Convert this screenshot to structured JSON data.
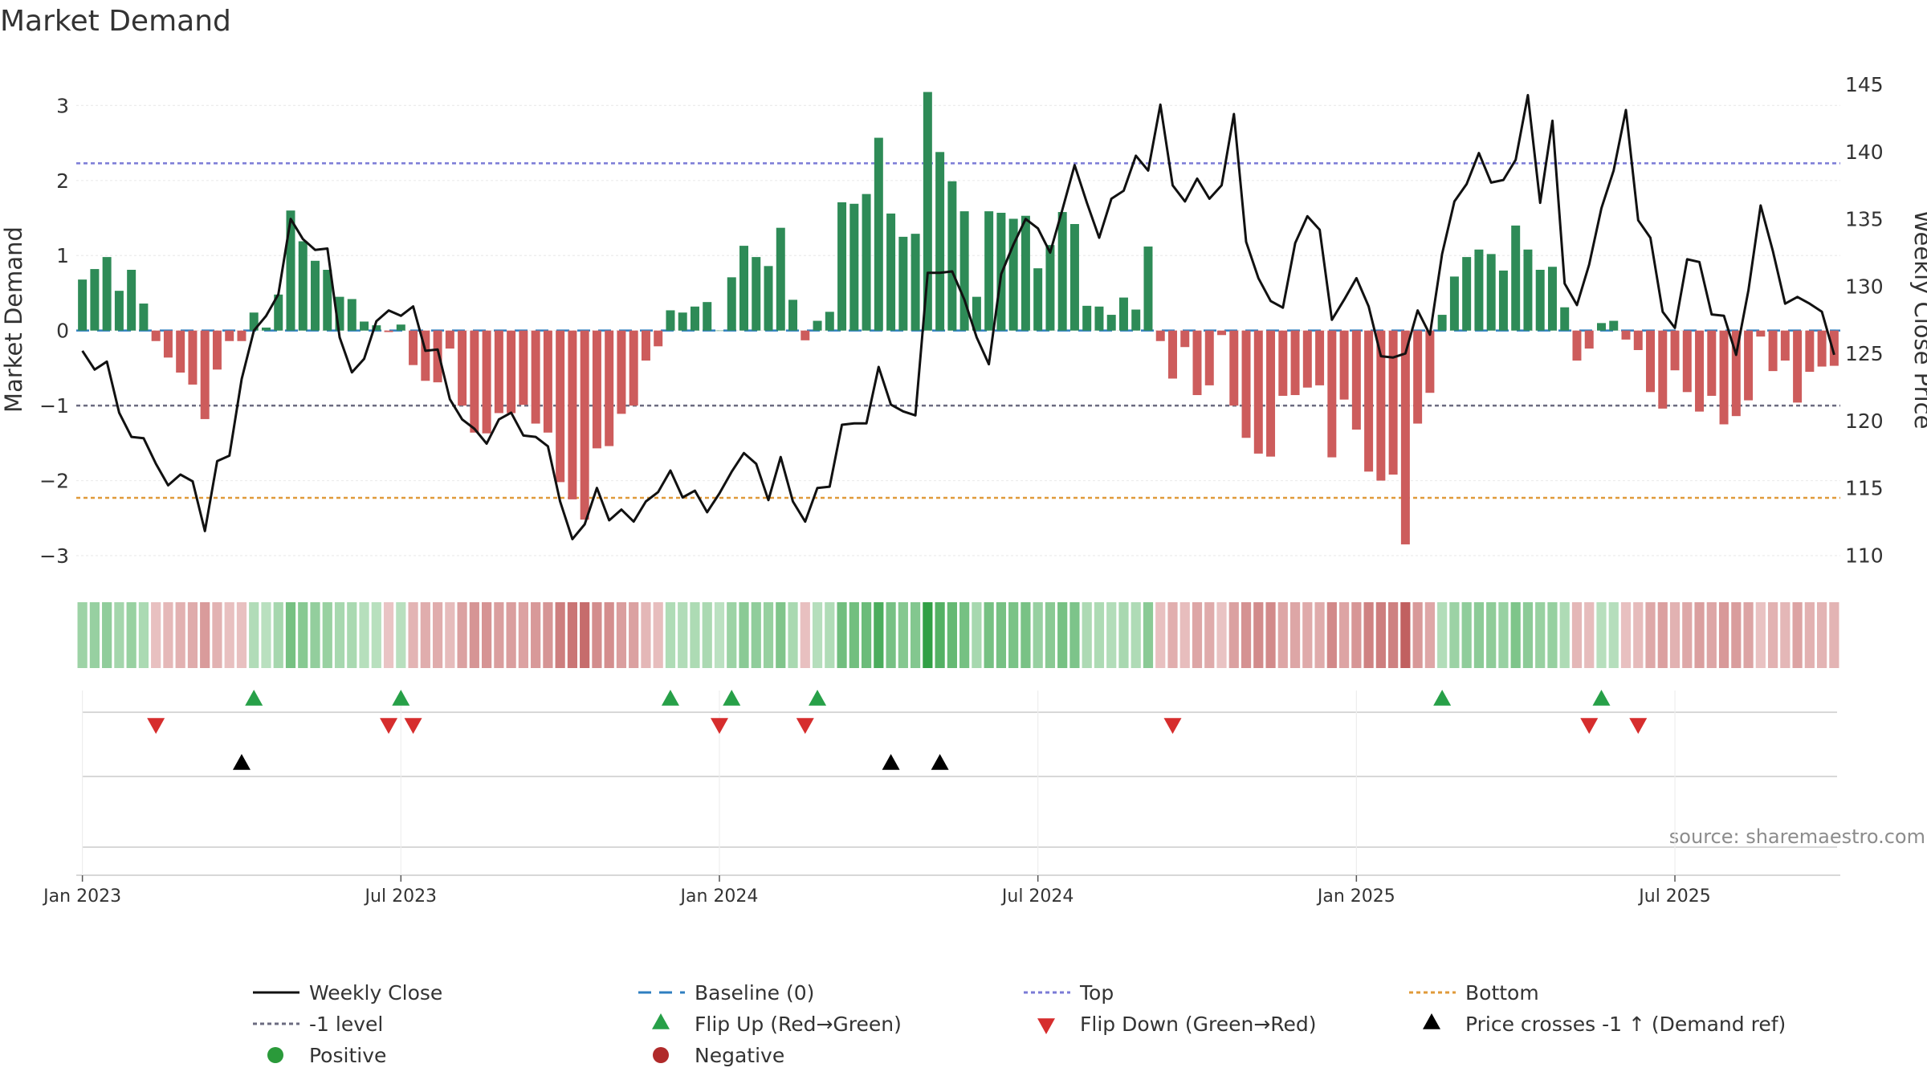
{
  "chart_data": {
    "type": "bar",
    "title": "Market Demand",
    "ylabel": "Market Demand",
    "y2label": "Weekly Close Price",
    "ylim": [
      -3.3,
      3.55
    ],
    "y2lim": [
      108.3,
      146.5
    ],
    "yticks": [
      3,
      2,
      1,
      0,
      -1,
      -2,
      -3
    ],
    "yticklabels": [
      "3",
      "2",
      "1",
      "0",
      "−1",
      "−2",
      "−3"
    ],
    "y2ticks": [
      145,
      140,
      135,
      130,
      125,
      120,
      115,
      110
    ],
    "y2ticklabels": [
      "145",
      "140",
      "135",
      "130",
      "125",
      "120",
      "115",
      "110"
    ],
    "xticks": [
      0.5,
      26.5,
      52.5,
      78.5,
      104.5,
      130.5
    ],
    "xticklabels": [
      "Jan 2023",
      "Jul 2023",
      "Jan 2024",
      "Jul 2024",
      "Jan 2025",
      "Jul 2025"
    ],
    "reference_lines": {
      "top": 2.23,
      "bottom": -2.23,
      "minus_one": -1.0,
      "baseline": 0
    },
    "colors": {
      "positive": "#2e8b57",
      "negative": "#cd5c5c",
      "price": "#111111",
      "top": "#7b7bd6",
      "bottom": "#e09a3a",
      "minus_one": "#6b6b80",
      "baseline": "#2f7fc0",
      "flip_up": "#27a048",
      "flip_down": "#d62d2d",
      "cross": "#000000",
      "legend_positive": "#2a9a3a",
      "legend_negative": "#b02a2a"
    },
    "demand": [
      0.68,
      0.82,
      0.98,
      0.53,
      0.81,
      0.36,
      -0.14,
      -0.36,
      -0.56,
      -0.72,
      -1.18,
      -0.52,
      -0.14,
      -0.14,
      0.24,
      0.04,
      0.48,
      1.6,
      1.19,
      0.93,
      0.81,
      0.45,
      0.42,
      0.12,
      0.07,
      -0.02,
      0.08,
      -0.46,
      -0.67,
      -0.69,
      -0.24,
      -1.0,
      -1.36,
      -1.37,
      -1.1,
      -1.1,
      -0.99,
      -1.24,
      -1.36,
      -2.02,
      -2.25,
      -2.52,
      -1.57,
      -1.54,
      -1.11,
      -1.0,
      -0.4,
      -0.21,
      0.27,
      0.24,
      0.32,
      0.38,
      0.0,
      0.71,
      1.13,
      0.98,
      0.86,
      1.37,
      0.41,
      -0.13,
      0.13,
      0.25,
      1.71,
      1.69,
      1.82,
      2.57,
      1.56,
      1.25,
      1.29,
      3.18,
      2.38,
      1.99,
      1.59,
      0.45,
      1.59,
      1.57,
      1.49,
      1.53,
      0.83,
      1.14,
      1.58,
      1.42,
      0.33,
      0.32,
      0.21,
      0.44,
      0.28,
      1.12,
      -0.14,
      -0.64,
      -0.22,
      -0.86,
      -0.73,
      -0.06,
      -1.0,
      -1.43,
      -1.64,
      -1.68,
      -0.87,
      -0.86,
      -0.76,
      -0.73,
      -1.69,
      -0.92,
      -1.32,
      -1.88,
      -2.0,
      -1.92,
      -2.85,
      -1.24,
      -0.83,
      0.21,
      0.72,
      0.98,
      1.08,
      1.02,
      0.8,
      1.4,
      1.08,
      0.81,
      0.85,
      0.31,
      -0.4,
      -0.24,
      0.1,
      0.13,
      -0.12,
      -0.26,
      -0.82,
      -1.04,
      -0.53,
      -0.82,
      -1.08,
      -0.87,
      -1.25,
      -1.14,
      -0.93,
      -0.08,
      -0.54,
      -0.4,
      -0.96,
      -0.55,
      -0.48,
      -0.47
    ],
    "price": [
      125.2,
      123.8,
      124.4,
      120.6,
      118.8,
      118.7,
      116.8,
      115.2,
      116.0,
      115.5,
      111.8,
      117.0,
      117.4,
      123.1,
      126.7,
      127.8,
      129.4,
      135.0,
      133.5,
      132.7,
      132.8,
      126.2,
      123.6,
      124.6,
      127.4,
      128.2,
      127.8,
      128.5,
      125.2,
      125.3,
      121.6,
      120.1,
      119.4,
      118.3,
      120.1,
      120.6,
      118.9,
      118.8,
      118.1,
      114.0,
      111.2,
      112.3,
      115.0,
      112.6,
      113.4,
      112.5,
      114.0,
      114.7,
      116.3,
      114.3,
      114.8,
      113.2,
      114.6,
      116.2,
      117.6,
      116.8,
      114.1,
      117.3,
      114.0,
      112.5,
      115.0,
      115.1,
      119.7,
      119.8,
      119.8,
      124.0,
      121.2,
      120.7,
      120.4,
      131.0,
      131.0,
      131.1,
      129.0,
      126.2,
      124.2,
      130.9,
      133.1,
      135.0,
      134.3,
      132.5,
      135.7,
      139.0,
      136.2,
      133.6,
      136.5,
      137.1,
      139.7,
      138.6,
      143.5,
      137.5,
      136.3,
      138.0,
      136.5,
      137.5,
      142.8,
      133.3,
      130.6,
      128.9,
      128.4,
      133.2,
      135.2,
      134.2,
      127.5,
      129.0,
      130.6,
      128.5,
      124.8,
      124.7,
      125.0,
      128.2,
      126.4,
      132.4,
      136.3,
      137.6,
      139.9,
      137.7,
      137.9,
      139.4,
      144.2,
      136.2,
      142.3,
      130.2,
      128.6,
      131.6,
      135.8,
      138.6,
      143.1,
      134.9,
      133.6,
      128.1,
      126.9,
      132.0,
      131.8,
      127.9,
      127.8,
      124.9,
      129.7,
      136.0,
      132.6,
      128.7,
      129.2,
      128.7,
      128.1,
      124.9
    ],
    "flip_up_indices": [
      14,
      26,
      48,
      53,
      60,
      111,
      124
    ],
    "flip_down_indices": [
      6,
      25,
      27,
      52,
      59,
      89,
      123,
      127
    ],
    "cross_indices": [
      13,
      66,
      70
    ],
    "source": "source: sharemaestro.com"
  },
  "legend": [
    {
      "label": "Weekly Close",
      "marker": "line",
      "color": "#111111"
    },
    {
      "label": "Baseline (0)",
      "marker": "dash",
      "color": "#2f7fc0"
    },
    {
      "label": "Top",
      "marker": "dot",
      "color": "#7b7bd6"
    },
    {
      "label": "Bottom",
      "marker": "dot",
      "color": "#e09a3a"
    },
    {
      "label": "-1 level",
      "marker": "dot",
      "color": "#6b6b80"
    },
    {
      "label": "Flip Up (Red→Green)",
      "marker": "tri-up",
      "color": "#27a048"
    },
    {
      "label": "Flip Down (Green→Red)",
      "marker": "tri-down",
      "color": "#d62d2d"
    },
    {
      "label": "Price crosses -1 ↑ (Demand ref)",
      "marker": "tri-up",
      "color": "#000000"
    },
    {
      "label": "Positive",
      "marker": "circle",
      "color": "#2a9a3a"
    },
    {
      "label": "Negative",
      "marker": "circle",
      "color": "#b02a2a"
    }
  ]
}
